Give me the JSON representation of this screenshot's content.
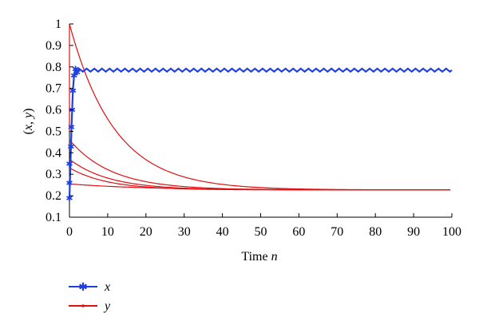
{
  "chart_data": {
    "type": "line",
    "xlabel_text": "Time",
    "xlabel_var": "n",
    "ylabel": "(x, y)",
    "xlim": [
      0,
      100
    ],
    "ylim": [
      0.1,
      1.0
    ],
    "x_ticks": [
      0,
      10,
      20,
      30,
      40,
      50,
      60,
      70,
      80,
      90,
      100
    ],
    "y_ticks": [
      0.1,
      0.2,
      0.3,
      0.4,
      0.5,
      0.6,
      0.7,
      0.8,
      0.9,
      1.0
    ],
    "y_tick_labels": [
      "0.1",
      "0.2",
      "0.3",
      "0.4",
      "0.5",
      "0.6",
      "0.7",
      "0.8",
      "0.9",
      "1"
    ],
    "grid": false,
    "legend_position": "bottom-left",
    "series": [
      {
        "name": "x",
        "color": "#1f3fe0",
        "marker": "star",
        "description_values": {
          "initial": [
            0.18,
            0.26,
            0.35,
            0.52
          ],
          "oscillation_center": 0.785,
          "oscillation_amplitude": 0.008,
          "oscillation_period": 2
        },
        "points": [
          [
            0.0,
            0.19
          ],
          [
            0.5,
            0.52
          ],
          [
            0.9,
            0.7
          ],
          [
            1.3,
            0.76
          ],
          [
            1.7,
            0.79
          ],
          [
            2.2,
            0.775
          ],
          [
            3.0,
            0.792
          ],
          [
            4.0,
            0.777
          ],
          [
            5.0,
            0.792
          ],
          [
            6.0,
            0.778
          ],
          [
            7.0,
            0.792
          ],
          [
            8.0,
            0.778
          ],
          [
            10.0,
            0.792
          ],
          [
            12.0,
            0.778
          ],
          [
            14.0,
            0.792
          ],
          [
            16.0,
            0.778
          ],
          [
            18.0,
            0.792
          ],
          [
            20.0,
            0.778
          ],
          [
            25.0,
            0.792
          ],
          [
            30.0,
            0.778
          ],
          [
            40.0,
            0.792
          ],
          [
            50.0,
            0.778
          ],
          [
            60.0,
            0.792
          ],
          [
            70.0,
            0.778
          ],
          [
            80.0,
            0.792
          ],
          [
            90.0,
            0.778
          ],
          [
            100.0,
            0.79
          ]
        ]
      },
      {
        "name": "y",
        "color": "#e01010",
        "marker": "dot",
        "curves": [
          {
            "start": 1.0,
            "peak_time": 0.3,
            "end": 0.227,
            "rate": 0.085
          },
          {
            "start": 0.46,
            "peak_time": 0.5,
            "end": 0.227,
            "rate": 0.09
          },
          {
            "start": 0.37,
            "peak_time": 0.5,
            "end": 0.227,
            "rate": 0.095
          },
          {
            "start": 0.33,
            "peak_time": 0.4,
            "end": 0.227,
            "rate": 0.1
          },
          {
            "start": 0.255,
            "peak_time": 0.3,
            "end": 0.227,
            "rate": 0.05
          }
        ]
      }
    ]
  },
  "legend": {
    "x_label": "x",
    "y_label": "y"
  }
}
